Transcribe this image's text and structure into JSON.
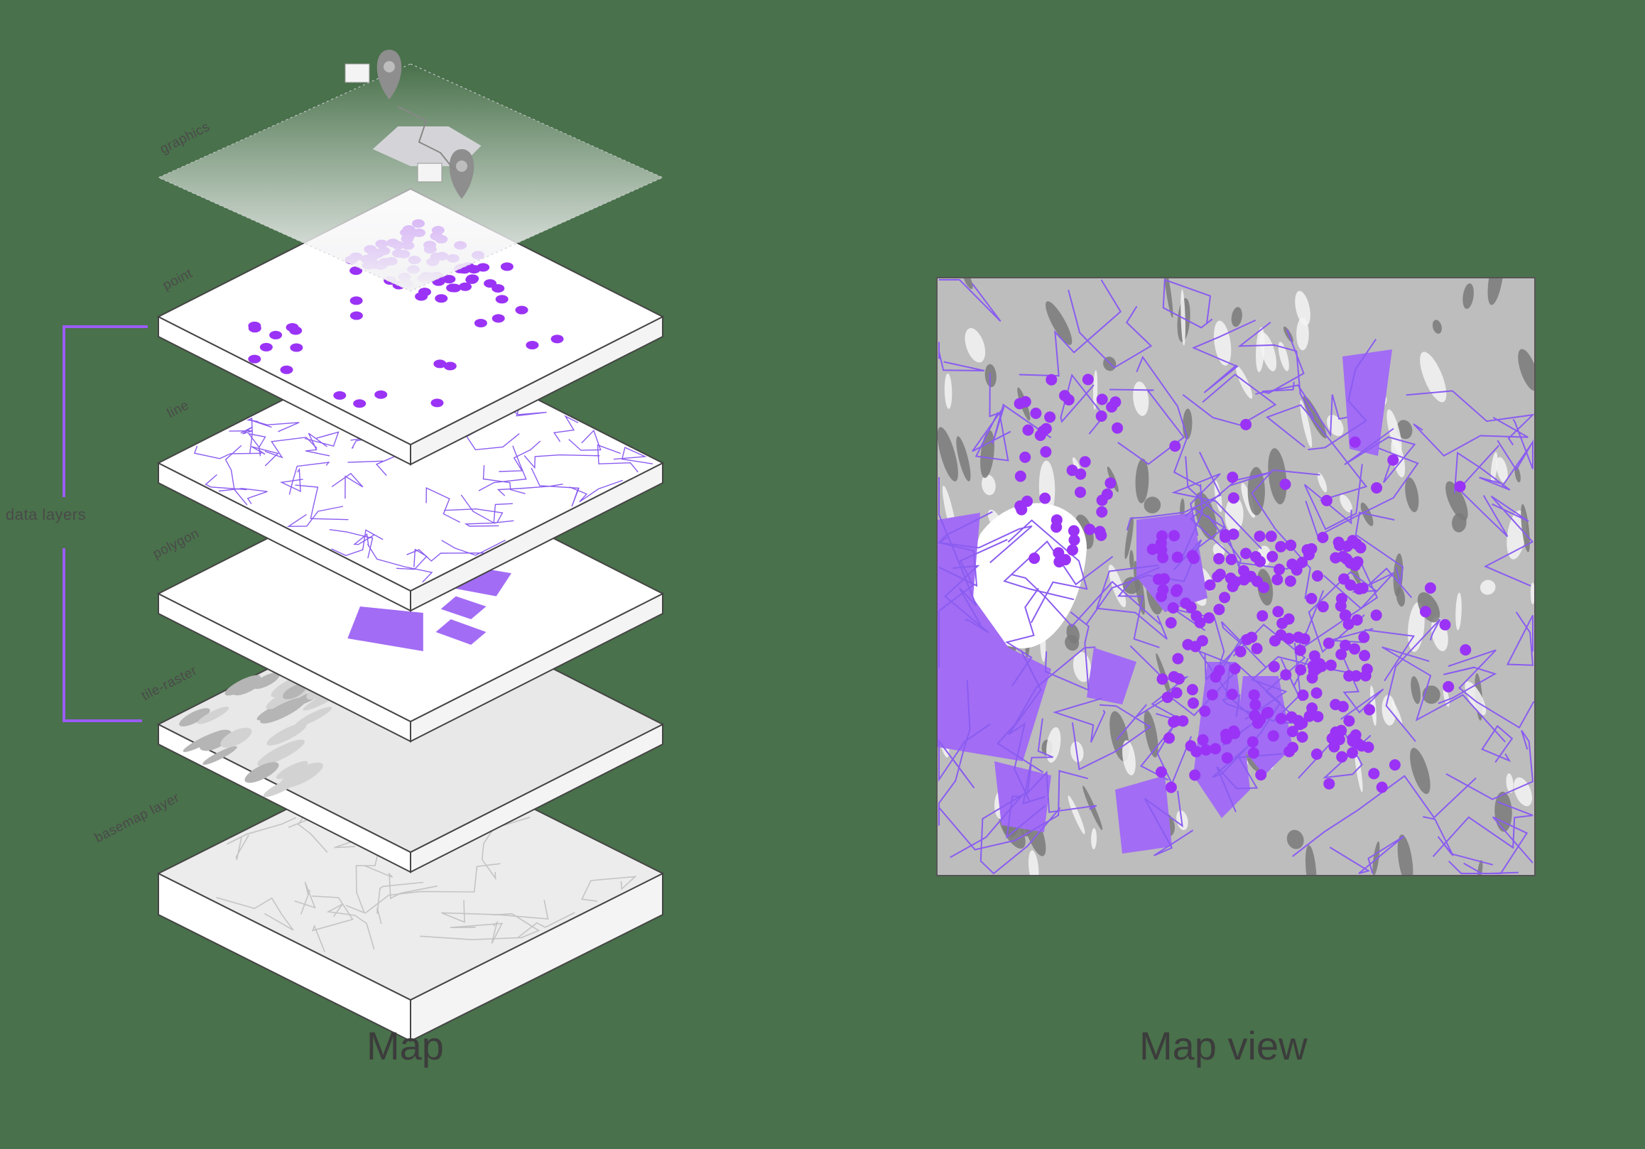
{
  "stack": {
    "layers": [
      {
        "id": "graphics",
        "label": "graphics"
      },
      {
        "id": "point",
        "label": "point"
      },
      {
        "id": "line",
        "label": "line"
      },
      {
        "id": "polygon",
        "label": "polygon"
      },
      {
        "id": "tile-raster",
        "label": "tile-raster"
      },
      {
        "id": "basemap",
        "label": "basemap layer"
      }
    ],
    "bracket_label": "data layers",
    "caption": "Map"
  },
  "map_view": {
    "caption": "Map view"
  },
  "colors": {
    "background": "#49714b",
    "accent_purple": "#9a33f5",
    "layer_fill": "#ffffff",
    "polygon_purple": "#a26cf5",
    "line_purple": "#8a5cf0",
    "text": "#3c3c3c"
  }
}
